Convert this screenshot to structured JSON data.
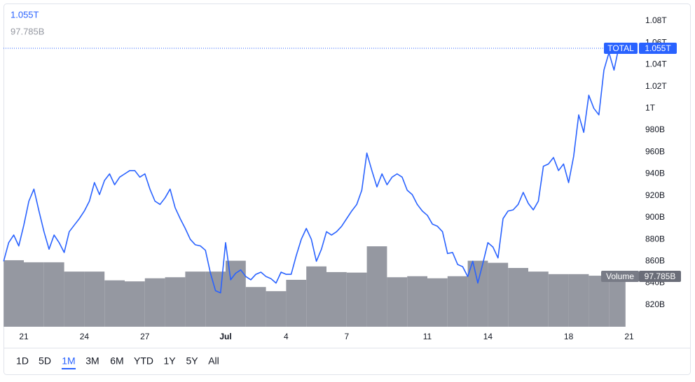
{
  "chart_data": {
    "type": "line",
    "categories": [
      null,
      null,
      null,
      null,
      "21",
      null,
      null,
      null,
      null,
      null,
      null,
      null,
      null,
      null,
      null,
      null,
      "24",
      null,
      null,
      null,
      null,
      null,
      null,
      null,
      null,
      null,
      null,
      null,
      "27",
      null,
      null,
      null,
      null,
      null,
      null,
      null,
      null,
      null,
      null,
      null,
      null,
      null,
      null,
      null,
      "Jul",
      null,
      null,
      null,
      null,
      null,
      null,
      null,
      null,
      null,
      null,
      null,
      "4",
      null,
      null,
      null,
      null,
      null,
      null,
      null,
      null,
      null,
      null,
      null,
      "7",
      null,
      null,
      null,
      null,
      null,
      null,
      null,
      null,
      null,
      null,
      null,
      null,
      null,
      null,
      null,
      "11",
      null,
      null,
      null,
      null,
      null,
      null,
      null,
      null,
      null,
      null,
      null,
      "14",
      null,
      null,
      null,
      null,
      null,
      null,
      null,
      null,
      null,
      null,
      null,
      null,
      null,
      null,
      null,
      "18",
      null,
      null,
      null,
      null,
      null,
      null,
      null,
      null,
      null,
      null,
      null,
      "21"
    ],
    "series": [
      {
        "name": "TOTAL",
        "type": "line",
        "color": "#2962ff",
        "values": [
          860,
          877,
          884,
          874,
          893,
          915,
          926,
          906,
          887,
          871,
          884,
          877,
          868,
          887,
          893,
          899,
          906,
          915,
          932,
          921,
          934,
          940,
          930,
          937,
          940,
          943,
          943,
          937,
          940,
          926,
          915,
          912,
          918,
          926,
          909,
          899,
          890,
          880,
          875,
          874,
          870,
          849,
          833,
          831,
          877,
          843,
          849,
          852,
          846,
          843,
          848,
          850,
          846,
          844,
          840,
          850,
          848,
          848,
          865,
          880,
          890,
          880,
          860,
          871,
          887,
          884,
          887,
          892,
          899,
          906,
          912,
          925,
          959,
          943,
          928,
          940,
          930,
          937,
          940,
          937,
          925,
          921,
          912,
          906,
          902,
          894,
          892,
          887,
          867,
          868,
          857,
          855,
          846,
          860,
          840,
          858,
          877,
          873,
          863,
          899,
          906,
          907,
          912,
          923,
          913,
          907,
          915,
          947,
          949,
          955,
          943,
          949,
          932,
          956,
          994,
          978,
          1012,
          1000,
          994,
          1035,
          1051,
          1035,
          1057,
          1055,
          null
        ],
        "value_labels": [
          null,
          null,
          null,
          null,
          null,
          null,
          null,
          null,
          null,
          null,
          null,
          null,
          null,
          null,
          null,
          null,
          null,
          null,
          null,
          null,
          null,
          null,
          null,
          null,
          null,
          null,
          null,
          null,
          null,
          null,
          null,
          null,
          null,
          null,
          null,
          null,
          null,
          null,
          null,
          null,
          null,
          null,
          null,
          null,
          null,
          null,
          null,
          null,
          null,
          null,
          null,
          null,
          null,
          null,
          null,
          null,
          null,
          null,
          null,
          null,
          null,
          null,
          null,
          null,
          null,
          null,
          null,
          null,
          null,
          null,
          null,
          null,
          null,
          null,
          null,
          null,
          null,
          null,
          null,
          null,
          null,
          null,
          null,
          null,
          null,
          null,
          null,
          null,
          null,
          null,
          null,
          null,
          null,
          null,
          null,
          null,
          null,
          null,
          null,
          null,
          null,
          null,
          null,
          null,
          null,
          null,
          null,
          null,
          null,
          null,
          null,
          null,
          null,
          null,
          null,
          null,
          null,
          null,
          null,
          null,
          null,
          null,
          null,
          "1.055T",
          null
        ]
      },
      {
        "name": "Volume",
        "type": "bar",
        "axis": "y2",
        "color": "#9598a1",
        "values": [
          129,
          null,
          null,
          null,
          125,
          null,
          null,
          null,
          125,
          null,
          null,
          null,
          107,
          null,
          null,
          null,
          107,
          null,
          null,
          null,
          90,
          null,
          null,
          null,
          88,
          null,
          null,
          null,
          94,
          null,
          null,
          null,
          96,
          null,
          null,
          null,
          107,
          null,
          null,
          null,
          107,
          null,
          null,
          null,
          128,
          null,
          null,
          null,
          77,
          null,
          null,
          null,
          69,
          null,
          null,
          null,
          91,
          null,
          null,
          null,
          117,
          null,
          null,
          null,
          106,
          null,
          null,
          null,
          105,
          null,
          null,
          null,
          156,
          null,
          null,
          null,
          96,
          null,
          null,
          null,
          98,
          null,
          null,
          null,
          94,
          null,
          null,
          null,
          98,
          null,
          null,
          null,
          128,
          null,
          null,
          null,
          124,
          null,
          null,
          null,
          114,
          null,
          null,
          null,
          107,
          null,
          null,
          null,
          102,
          null,
          null,
          null,
          102,
          null,
          null,
          null,
          99,
          null,
          null,
          null,
          97.785,
          null,
          null,
          null,
          null
        ],
        "value_labels": [
          null,
          null,
          null,
          null,
          null,
          null,
          null,
          null,
          null,
          null,
          null,
          null,
          null,
          null,
          null,
          null,
          null,
          null,
          null,
          null,
          null,
          null,
          null,
          null,
          null,
          null,
          null,
          null,
          null,
          null,
          null,
          null,
          null,
          null,
          null,
          null,
          null,
          null,
          null,
          null,
          null,
          null,
          null,
          null,
          null,
          null,
          null,
          null,
          null,
          null,
          null,
          null,
          null,
          null,
          null,
          null,
          null,
          null,
          null,
          null,
          null,
          null,
          null,
          null,
          null,
          null,
          null,
          null,
          null,
          null,
          null,
          null,
          null,
          null,
          null,
          null,
          null,
          null,
          null,
          null,
          null,
          null,
          null,
          null,
          null,
          null,
          null,
          null,
          null,
          null,
          null,
          null,
          null,
          null,
          null,
          null,
          null,
          null,
          null,
          null,
          null,
          null,
          null,
          null,
          null,
          null,
          null,
          null,
          null,
          null,
          null,
          null,
          null,
          null,
          null,
          null,
          null,
          null,
          null,
          null,
          "97.785B",
          null,
          null,
          null,
          null
        ]
      }
    ],
    "ylim": [
      800,
      1096
    ],
    "yticks": [
      {
        "value": 820,
        "label": "820B"
      },
      {
        "value": 840,
        "label": "840B"
      },
      {
        "value": 860,
        "label": "860B"
      },
      {
        "value": 880,
        "label": "880B"
      },
      {
        "value": 900,
        "label": "900B"
      },
      {
        "value": 920,
        "label": "920B"
      },
      {
        "value": 940,
        "label": "940B"
      },
      {
        "value": 960,
        "label": "960B"
      },
      {
        "value": 980,
        "label": "980B"
      },
      {
        "value": 1000,
        "label": "1T"
      },
      {
        "value": 1020,
        "label": "1.02T"
      },
      {
        "value": 1040,
        "label": "1.04T"
      },
      {
        "value": 1060,
        "label": "1.06T"
      },
      {
        "value": 1080,
        "label": "1.08T"
      }
    ],
    "y2lim": [
      0,
      627
    ],
    "grid": false
  },
  "toolbar": {
    "buttons": [
      "1D",
      "5D",
      "1M",
      "3M",
      "6M",
      "YTD",
      "1Y",
      "5Y",
      "All"
    ],
    "active": "1M"
  }
}
